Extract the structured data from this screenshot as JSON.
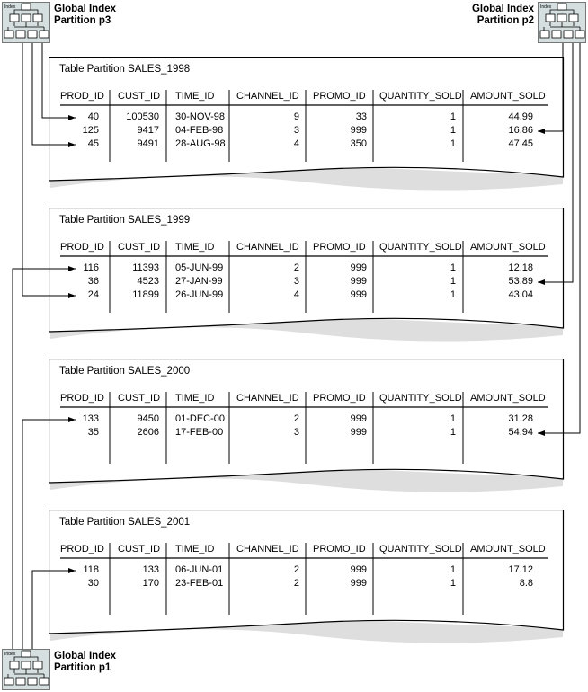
{
  "indexes": [
    {
      "id": "p3",
      "line1": "Global Index",
      "line2": "Partition p3",
      "icon_text": "Index"
    },
    {
      "id": "p2",
      "line1": "Global Index",
      "line2": "Partition p2",
      "icon_text": "Index"
    },
    {
      "id": "p1",
      "line1": "Global Index",
      "line2": "Partition p1",
      "icon_text": "Index"
    }
  ],
  "columns": [
    "PROD_ID",
    "CUST_ID",
    "TIME_ID",
    "CHANNEL_ID",
    "PROMO_ID",
    "QUANTITY_SOLD",
    "AMOUNT_SOLD"
  ],
  "partitions": [
    {
      "title": "Table Partition SALES_1998",
      "rows": [
        [
          "40",
          "100530",
          "30-NOV-98",
          "9",
          "33",
          "1",
          "44.99"
        ],
        [
          "125",
          "9417",
          "04-FEB-98",
          "3",
          "999",
          "1",
          "16.86"
        ],
        [
          "45",
          "9491",
          "28-AUG-98",
          "4",
          "350",
          "1",
          "47.45"
        ]
      ]
    },
    {
      "title": "Table Partition SALES_1999",
      "rows": [
        [
          "116",
          "11393",
          "05-JUN-99",
          "2",
          "999",
          "1",
          "12.18"
        ],
        [
          "36",
          "4523",
          "27-JAN-99",
          "3",
          "999",
          "1",
          "53.89"
        ],
        [
          "24",
          "11899",
          "26-JUN-99",
          "4",
          "999",
          "1",
          "43.04"
        ]
      ]
    },
    {
      "title": "Table Partition SALES_2000",
      "rows": [
        [
          "133",
          "9450",
          "01-DEC-00",
          "2",
          "999",
          "1",
          "31.28"
        ],
        [
          "35",
          "2606",
          "17-FEB-00",
          "3",
          "999",
          "1",
          "54.94"
        ]
      ]
    },
    {
      "title": "Table Partition SALES_2001",
      "rows": [
        [
          "118",
          "133",
          "06-JUN-01",
          "2",
          "999",
          "1",
          "17.12"
        ],
        [
          "30",
          "170",
          "23-FEB-01",
          "2",
          "999",
          "1",
          "8.8"
        ]
      ]
    }
  ],
  "colors": {
    "icon_fill": "#d5dfdf",
    "line": "#000000",
    "shadow": "#c8c8c8"
  }
}
